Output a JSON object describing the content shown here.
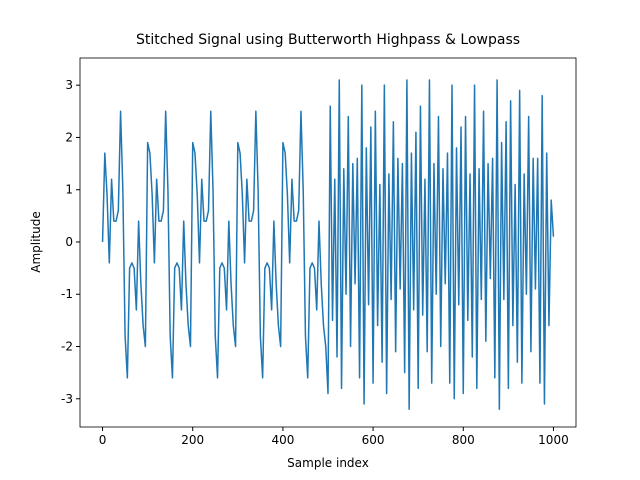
{
  "chart_data": {
    "type": "line",
    "title": "Stitched Signal using Butterworth Highpass & Lowpass",
    "xlabel": "Sample index",
    "ylabel": "Amplitude",
    "xlim": [
      -50,
      1050
    ],
    "ylim": [
      -3.54,
      3.52
    ],
    "xticks": [
      0,
      200,
      400,
      600,
      800,
      1000
    ],
    "yticks": [
      -3,
      -2,
      -1,
      0,
      1,
      2,
      3
    ],
    "series": [
      {
        "name": "signal",
        "color": "#1f77b4",
        "x": [
          0,
          5,
          10,
          15,
          20,
          25,
          30,
          35,
          40,
          45,
          50,
          55,
          60,
          65,
          70,
          75,
          80,
          85,
          90,
          95,
          100,
          105,
          110,
          115,
          120,
          125,
          130,
          135,
          140,
          145,
          150,
          155,
          160,
          165,
          170,
          175,
          180,
          185,
          190,
          195,
          200,
          205,
          210,
          215,
          220,
          225,
          230,
          235,
          240,
          245,
          250,
          255,
          260,
          265,
          270,
          275,
          280,
          285,
          290,
          295,
          300,
          305,
          310,
          315,
          320,
          325,
          330,
          335,
          340,
          345,
          350,
          355,
          360,
          365,
          370,
          375,
          380,
          385,
          390,
          395,
          400,
          405,
          410,
          415,
          420,
          425,
          430,
          435,
          440,
          445,
          450,
          455,
          460,
          465,
          470,
          475,
          480,
          485,
          490,
          495,
          500,
          505,
          510,
          515,
          520,
          525,
          530,
          535,
          540,
          545,
          550,
          555,
          560,
          565,
          570,
          575,
          580,
          585,
          590,
          595,
          600,
          605,
          610,
          615,
          620,
          625,
          630,
          635,
          640,
          645,
          650,
          655,
          660,
          665,
          670,
          675,
          680,
          685,
          690,
          695,
          700,
          705,
          710,
          715,
          720,
          725,
          730,
          735,
          740,
          745,
          750,
          755,
          760,
          765,
          770,
          775,
          780,
          785,
          790,
          795,
          800,
          805,
          810,
          815,
          820,
          825,
          830,
          835,
          840,
          845,
          850,
          855,
          860,
          865,
          870,
          875,
          880,
          885,
          890,
          895,
          900,
          905,
          910,
          915,
          920,
          925,
          930,
          935,
          940,
          945,
          950,
          955,
          960,
          965,
          970,
          975,
          980,
          985,
          990,
          995,
          1000
        ],
        "values": [
          0,
          1.7,
          0.9,
          -0.4,
          1.2,
          0.4,
          0.4,
          0.6,
          2.5,
          1.0,
          -1.8,
          -2.6,
          -0.5,
          -0.4,
          -0.5,
          -1.3,
          0.4,
          -0.8,
          -1.6,
          -2.0,
          1.9,
          1.7,
          0.9,
          -0.4,
          1.2,
          0.4,
          0.4,
          0.6,
          2.5,
          1.0,
          -1.8,
          -2.6,
          -0.5,
          -0.4,
          -0.5,
          -1.3,
          0.4,
          -0.8,
          -1.6,
          -2.0,
          1.9,
          1.7,
          0.9,
          -0.4,
          1.2,
          0.4,
          0.4,
          0.6,
          2.5,
          1.0,
          -1.8,
          -2.6,
          -0.5,
          -0.4,
          -0.5,
          -1.3,
          0.4,
          -0.8,
          -1.6,
          -2.0,
          1.9,
          1.7,
          0.9,
          -0.4,
          1.2,
          0.4,
          0.4,
          0.6,
          2.5,
          1.0,
          -1.8,
          -2.6,
          -0.5,
          -0.4,
          -0.5,
          -1.3,
          0.4,
          -0.8,
          -1.6,
          -2.0,
          1.9,
          1.7,
          0.9,
          -0.4,
          1.2,
          0.4,
          0.4,
          0.6,
          2.5,
          1.0,
          -1.8,
          -2.6,
          -0.5,
          -0.4,
          -0.5,
          -1.3,
          0.4,
          -0.8,
          -1.6,
          -2.0,
          -2.9,
          2.6,
          -1.5,
          1.2,
          -2.2,
          3.1,
          -2.8,
          1.4,
          -1.0,
          2.4,
          -2.0,
          1.5,
          -0.8,
          1.6,
          -2.6,
          3.0,
          -3.1,
          1.8,
          -1.2,
          2.2,
          -2.7,
          2.5,
          -1.6,
          1.1,
          -2.3,
          3.0,
          -2.9,
          1.3,
          -1.1,
          2.3,
          -2.1,
          1.6,
          -0.9,
          1.5,
          -2.5,
          3.1,
          -3.2,
          1.7,
          -1.3,
          2.1,
          -2.8,
          2.6,
          -1.4,
          1.2,
          -2.1,
          3.1,
          -2.7,
          1.5,
          -1.0,
          2.4,
          -2.0,
          1.4,
          -0.8,
          1.7,
          -2.7,
          3.0,
          -3.0,
          1.8,
          -1.2,
          2.2,
          -2.9,
          2.4,
          -1.5,
          1.3,
          -2.2,
          3.0,
          -2.8,
          1.4,
          -1.1,
          2.5,
          -1.9,
          1.5,
          -0.7,
          1.6,
          -2.6,
          3.1,
          -3.2,
          1.9,
          -1.1,
          2.3,
          -2.8,
          2.7,
          -1.6,
          1.1,
          -2.3,
          2.9,
          -2.7,
          1.3,
          -1.0,
          2.4,
          -2.1,
          1.6,
          -0.9,
          1.6,
          -2.7,
          2.8,
          -3.1,
          1.7,
          -1.6,
          0.8,
          0.1
        ]
      }
    ]
  }
}
